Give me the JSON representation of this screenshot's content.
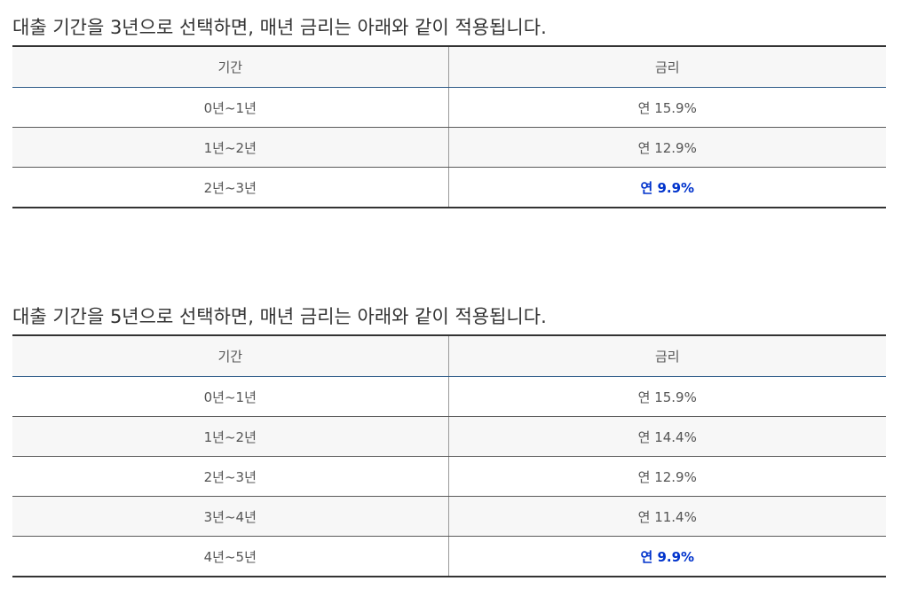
{
  "section_3yr": {
    "heading": "대출 기간을 3년으로 선택하면, 매년 금리는 아래와 같이 적용됩니다.",
    "headers": {
      "period": "기간",
      "rate": "금리"
    },
    "rows": [
      {
        "period": "0년~1년",
        "rate": "연 15.9%"
      },
      {
        "period": "1년~2년",
        "rate": "연 12.9%"
      },
      {
        "period": "2년~3년",
        "rate": "연 9.9%"
      }
    ]
  },
  "section_5yr": {
    "heading": "대출 기간을 5년으로 선택하면, 매년 금리는 아래와 같이 적용됩니다.",
    "headers": {
      "period": "기간",
      "rate": "금리"
    },
    "rows": [
      {
        "period": "0년~1년",
        "rate": "연 15.9%"
      },
      {
        "period": "1년~2년",
        "rate": "연 14.4%"
      },
      {
        "period": "2년~3년",
        "rate": "연 12.9%"
      },
      {
        "period": "3년~4년",
        "rate": "연 11.4%"
      },
      {
        "period": "4년~5년",
        "rate": "연 9.9%"
      }
    ]
  },
  "colors": {
    "highlight_rate": "#0033cc",
    "header_background": "#f7f7f7",
    "header_underline": "#2d5b88"
  }
}
